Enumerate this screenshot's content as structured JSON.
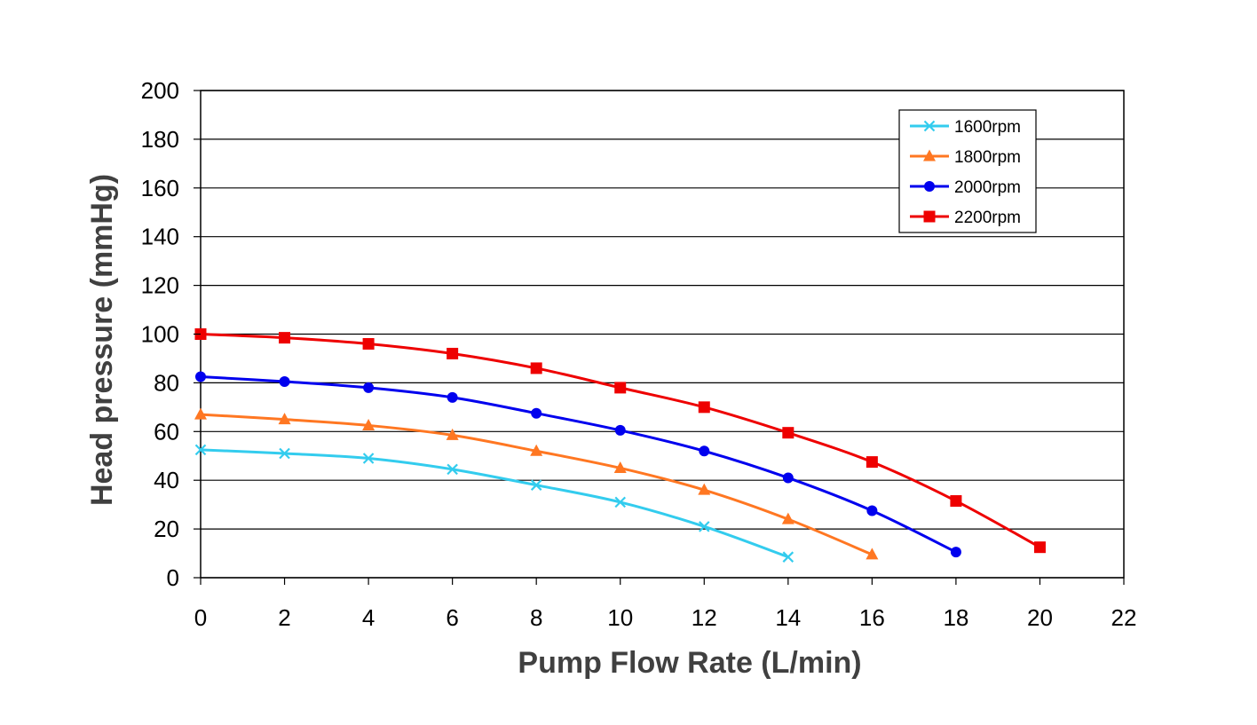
{
  "chart_data": {
    "type": "line",
    "xlabel": "Pump Flow Rate (L/min)",
    "ylabel": "Head pressure (mmHg)",
    "xlim": [
      0,
      22
    ],
    "ylim": [
      0,
      200
    ],
    "xticks": [
      0,
      2,
      4,
      6,
      8,
      10,
      12,
      14,
      16,
      18,
      20,
      22
    ],
    "yticks": [
      0,
      20,
      40,
      60,
      80,
      100,
      120,
      140,
      160,
      180,
      200
    ],
    "grid": "horizontal",
    "legend_position": "top-right",
    "series": [
      {
        "name": "1600rpm",
        "color": "#33ccee",
        "marker": "x",
        "x": [
          0,
          2,
          4,
          6,
          8,
          10,
          12,
          14
        ],
        "y": [
          52.5,
          51,
          49,
          44.5,
          38,
          31,
          21,
          8.5
        ]
      },
      {
        "name": "1800rpm",
        "color": "#ff7722",
        "marker": "triangle",
        "x": [
          0,
          2,
          4,
          6,
          8,
          10,
          12,
          14,
          16
        ],
        "y": [
          67,
          65,
          62.5,
          58.5,
          52,
          45,
          36,
          24,
          9.5
        ]
      },
      {
        "name": "2000rpm",
        "color": "#0000ee",
        "marker": "circle",
        "x": [
          0,
          2,
          4,
          6,
          8,
          10,
          12,
          14,
          16,
          18
        ],
        "y": [
          82.5,
          80.5,
          78,
          74,
          67.5,
          60.5,
          52,
          41,
          27.5,
          10.5
        ]
      },
      {
        "name": "2200rpm",
        "color": "#ee0000",
        "marker": "square",
        "x": [
          0,
          2,
          4,
          6,
          8,
          10,
          12,
          14,
          16,
          18,
          20
        ],
        "y": [
          100,
          98.5,
          96,
          92,
          86,
          78,
          70,
          59.5,
          47.5,
          31.5,
          12.5
        ]
      }
    ]
  }
}
